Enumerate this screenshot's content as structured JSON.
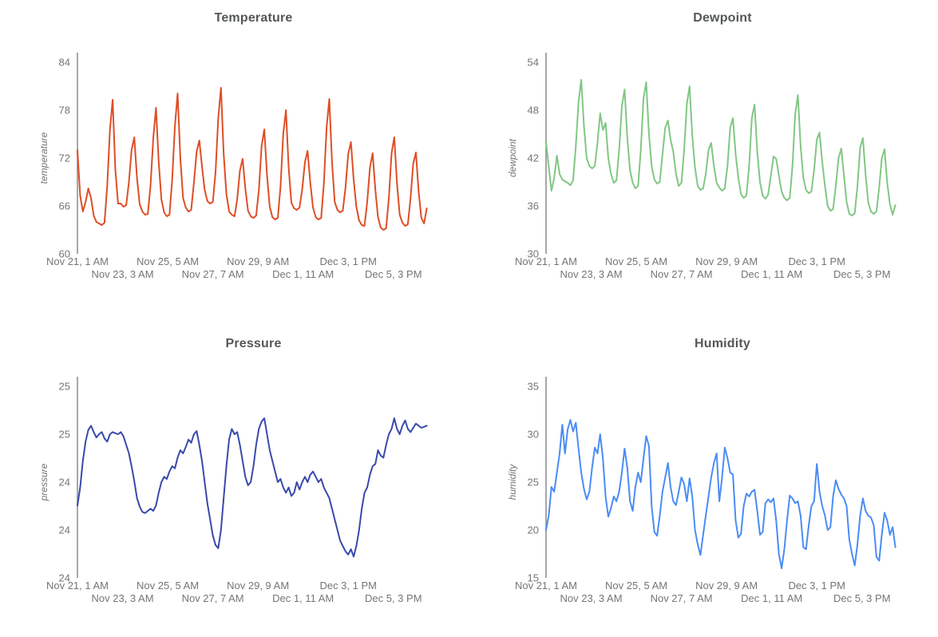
{
  "page": {
    "background": "#ffffff"
  },
  "style": {
    "tick_color": "#757575",
    "title_color": "#545759",
    "axis_line_color": "#8a8a8a"
  },
  "chart_data": {
    "type": "line",
    "layout": "2x2-grid",
    "grid": false,
    "legend": "none",
    "x_span_hours": 390,
    "sample_step_hours": 3,
    "x_ticks": [
      {
        "hour": 0,
        "label": "Nov 21, 1 AM",
        "row": 0
      },
      {
        "hour": 50,
        "label": "Nov 23, 3 AM",
        "row": 1
      },
      {
        "hour": 100,
        "label": "Nov 25, 5 AM",
        "row": 0
      },
      {
        "hour": 150,
        "label": "Nov 27, 7 AM",
        "row": 1
      },
      {
        "hour": 200,
        "label": "Nov 29, 9 AM",
        "row": 0
      },
      {
        "hour": 250,
        "label": "Dec 1, 11 AM",
        "row": 1
      },
      {
        "hour": 300,
        "label": "Dec 3, 1 PM",
        "row": 0
      },
      {
        "hour": 350,
        "label": "Dec 5, 3 PM",
        "row": 1
      }
    ],
    "charts": [
      {
        "title": "Temperature",
        "ylabel": "temperature",
        "color": "#DF4E26",
        "ylim": [
          60,
          84
        ],
        "y_tick_labels": [
          "84",
          "78",
          "72",
          "66",
          "60"
        ],
        "values": [
          73.0,
          67.3,
          65.3,
          66.5,
          68.2,
          67.0,
          64.8,
          64.0,
          63.8,
          63.6,
          63.9,
          68.5,
          75.5,
          79.3,
          70.5,
          66.3,
          66.3,
          65.9,
          66.1,
          69.0,
          73.0,
          74.6,
          69.5,
          66.2,
          65.3,
          64.9,
          65.0,
          68.6,
          74.5,
          78.3,
          71.5,
          66.8,
          65.2,
          64.7,
          64.9,
          69.3,
          76.0,
          80.1,
          72.0,
          67.0,
          65.8,
          65.3,
          65.5,
          68.9,
          72.8,
          74.2,
          71.0,
          68.0,
          66.6,
          66.3,
          66.5,
          70.2,
          77.0,
          80.8,
          72.5,
          67.5,
          65.3,
          64.9,
          64.7,
          66.8,
          70.4,
          71.9,
          68.2,
          65.4,
          64.7,
          64.5,
          64.8,
          68.0,
          73.5,
          75.6,
          69.8,
          65.9,
          64.6,
          64.3,
          64.5,
          68.4,
          75.0,
          78.0,
          70.8,
          66.4,
          65.7,
          65.5,
          65.8,
          68.1,
          71.5,
          72.9,
          68.9,
          65.8,
          64.6,
          64.3,
          64.5,
          68.8,
          75.8,
          79.4,
          71.5,
          66.5,
          65.5,
          65.2,
          65.4,
          68.3,
          72.5,
          74.0,
          69.3,
          65.9,
          64.2,
          63.6,
          63.5,
          66.5,
          70.8,
          72.6,
          68.0,
          64.6,
          63.3,
          63.0,
          63.2,
          67.0,
          72.6,
          74.6,
          68.8,
          64.9,
          63.9,
          63.5,
          63.7,
          67.0,
          71.3,
          72.7,
          67.8,
          64.5,
          63.8,
          65.7
        ]
      },
      {
        "title": "Dewpoint",
        "ylabel": "dewpoint",
        "color": "#81C784",
        "ylim": [
          30,
          54
        ],
        "y_tick_labels": [
          "54",
          "48",
          "42",
          "36",
          "30"
        ],
        "values": [
          44.0,
          40.9,
          37.9,
          39.5,
          42.3,
          40.0,
          39.3,
          39.1,
          38.9,
          38.6,
          39.2,
          43.5,
          49.0,
          51.8,
          46.0,
          42.0,
          41.0,
          40.7,
          41.0,
          44.0,
          47.6,
          45.5,
          46.4,
          42.0,
          40.0,
          38.9,
          39.2,
          43.0,
          48.5,
          50.6,
          44.5,
          40.5,
          38.9,
          38.2,
          38.5,
          43.0,
          49.5,
          51.5,
          45.0,
          41.0,
          39.3,
          38.8,
          39.0,
          42.5,
          45.8,
          46.7,
          44.3,
          42.8,
          40.0,
          38.5,
          38.9,
          43.0,
          48.8,
          51.0,
          44.8,
          40.8,
          38.5,
          38.0,
          38.2,
          40.0,
          43.0,
          43.9,
          41.0,
          38.9,
          38.3,
          37.9,
          38.2,
          41.0,
          45.8,
          47.0,
          42.5,
          39.5,
          37.5,
          37.0,
          37.3,
          41.0,
          47.0,
          48.7,
          42.8,
          39.0,
          37.3,
          36.9,
          37.4,
          39.8,
          42.2,
          41.9,
          39.8,
          37.8,
          37.0,
          36.7,
          37.0,
          41.0,
          47.5,
          49.9,
          43.5,
          39.5,
          38.0,
          37.6,
          37.8,
          40.5,
          44.3,
          45.2,
          41.5,
          38.5,
          36.0,
          35.4,
          35.6,
          38.5,
          42.0,
          43.2,
          39.8,
          36.5,
          35.0,
          34.8,
          35.1,
          38.5,
          43.3,
          44.5,
          39.9,
          36.4,
          35.3,
          35.0,
          35.3,
          38.3,
          42.0,
          43.1,
          38.9,
          36.2,
          34.9,
          36.1
        ]
      },
      {
        "title": "Pressure",
        "ylabel": "pressure",
        "color": "#3949AB",
        "ylim": [
          23.65,
          25.45
        ],
        "y_tick_labels": [
          "25",
          "25",
          "24",
          "24",
          "24"
        ],
        "values": [
          24.33,
          24.5,
          24.75,
          24.93,
          25.04,
          25.08,
          25.02,
          24.97,
          25.0,
          25.02,
          24.96,
          24.93,
          25.0,
          25.02,
          25.01,
          25.0,
          25.02,
          24.98,
          24.9,
          24.82,
          24.7,
          24.56,
          24.4,
          24.32,
          24.27,
          24.26,
          24.28,
          24.3,
          24.28,
          24.33,
          24.45,
          24.55,
          24.6,
          24.58,
          24.65,
          24.7,
          24.68,
          24.78,
          24.85,
          24.82,
          24.88,
          24.95,
          24.92,
          25.0,
          25.03,
          24.9,
          24.75,
          24.55,
          24.35,
          24.2,
          24.05,
          23.96,
          23.93,
          24.1,
          24.4,
          24.7,
          24.95,
          25.05,
          25.0,
          25.02,
          24.9,
          24.75,
          24.6,
          24.52,
          24.55,
          24.7,
          24.9,
          25.05,
          25.12,
          25.15,
          25.0,
          24.85,
          24.75,
          24.65,
          24.55,
          24.58,
          24.5,
          24.45,
          24.5,
          24.42,
          24.45,
          24.55,
          24.48,
          24.55,
          24.6,
          24.55,
          24.62,
          24.65,
          24.6,
          24.55,
          24.58,
          24.5,
          24.45,
          24.4,
          24.3,
          24.2,
          24.1,
          24.0,
          23.95,
          23.9,
          23.87,
          23.92,
          23.85,
          23.95,
          24.1,
          24.3,
          24.45,
          24.5,
          24.62,
          24.7,
          24.72,
          24.85,
          24.8,
          24.78,
          24.9,
          25.0,
          25.05,
          25.15,
          25.05,
          25.0,
          25.08,
          25.13,
          25.05,
          25.02,
          25.06,
          25.1,
          25.08,
          25.06,
          25.07,
          25.08
        ]
      },
      {
        "title": "Humidity",
        "ylabel": "humidity",
        "color": "#4A8CF5",
        "ylim": [
          15,
          35
        ],
        "y_tick_labels": [
          "35",
          "30",
          "25",
          "20",
          "15"
        ],
        "values": [
          20.0,
          21.5,
          24.5,
          24.0,
          26.0,
          28.0,
          31.0,
          28.0,
          30.5,
          31.5,
          30.3,
          31.2,
          28.5,
          26.0,
          24.3,
          23.2,
          24.0,
          26.5,
          28.6,
          28.0,
          30.0,
          27.5,
          23.5,
          21.4,
          22.3,
          23.5,
          23.0,
          24.0,
          26.0,
          28.5,
          26.5,
          23.0,
          22.0,
          24.5,
          26.0,
          25.0,
          27.5,
          29.8,
          28.8,
          22.5,
          19.8,
          19.4,
          21.5,
          24.0,
          25.5,
          27.0,
          24.5,
          23.0,
          22.6,
          24.0,
          25.5,
          24.8,
          23.0,
          25.4,
          23.5,
          20.0,
          18.5,
          17.4,
          19.5,
          21.5,
          23.5,
          25.5,
          27.0,
          28.0,
          23.0,
          25.5,
          28.6,
          27.5,
          26.0,
          25.8,
          21.0,
          19.2,
          19.6,
          22.5,
          23.8,
          23.5,
          24.0,
          24.2,
          22.0,
          19.5,
          19.8,
          22.8,
          23.2,
          22.9,
          23.3,
          21.0,
          17.5,
          16.0,
          18.0,
          21.0,
          23.6,
          23.3,
          22.8,
          23.0,
          21.5,
          18.2,
          18.0,
          20.5,
          22.5,
          23.0,
          26.9,
          24.0,
          22.5,
          21.5,
          20.0,
          20.3,
          23.5,
          25.2,
          24.3,
          23.7,
          23.3,
          22.5,
          19.0,
          17.5,
          16.3,
          18.5,
          21.5,
          23.3,
          22.0,
          21.5,
          21.3,
          20.5,
          17.2,
          16.8,
          19.5,
          21.8,
          21.0,
          19.5,
          20.3,
          18.2
        ]
      }
    ]
  }
}
